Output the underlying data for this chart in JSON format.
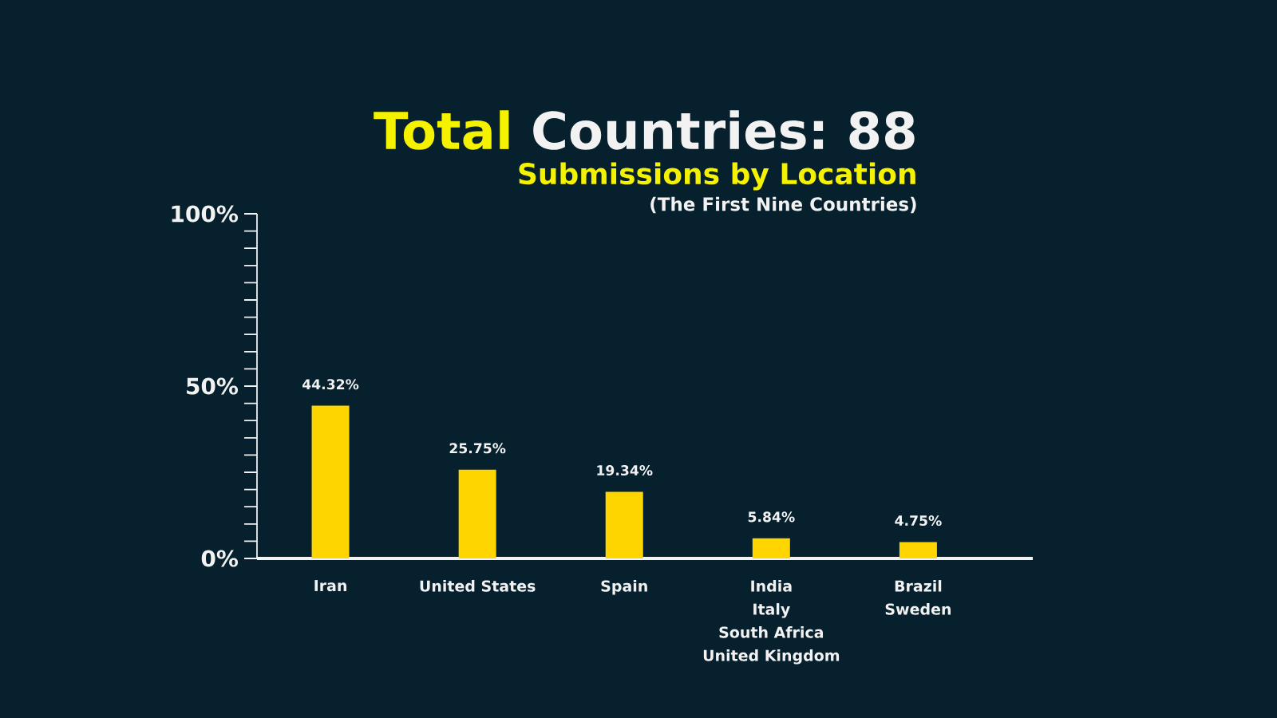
{
  "chart_data": {
    "type": "bar",
    "title": "Total Countries: 88",
    "subtitle": "Submissions by Location",
    "annotations": [
      "(The First Nine Countries)"
    ],
    "categories": [
      "Iran",
      "United States",
      "Spain",
      "India\nItaly\nSouth Africa\nUnited Kingdom",
      "Brazil\nSweden"
    ],
    "values": [
      44.32,
      25.75,
      19.34,
      5.84,
      4.75
    ],
    "value_labels": [
      "44.32%",
      "25.75%",
      "19.34%",
      "5.84%",
      "4.75%"
    ],
    "color": "#ffd500",
    "ylim": [
      0,
      100
    ],
    "yticks": [
      {
        "value": 0,
        "label": "0%"
      },
      {
        "value": 5,
        "label": null
      },
      {
        "value": 10,
        "label": null
      },
      {
        "value": 15,
        "label": null
      },
      {
        "value": 20,
        "label": null
      },
      {
        "value": 25,
        "label": null
      },
      {
        "value": 30,
        "label": null
      },
      {
        "value": 35,
        "label": null
      },
      {
        "value": 40,
        "label": null
      },
      {
        "value": 45,
        "label": null
      },
      {
        "value": 50,
        "label": "50%"
      },
      {
        "value": 55,
        "label": null
      },
      {
        "value": 60,
        "label": null
      },
      {
        "value": 65,
        "label": null
      },
      {
        "value": 70,
        "label": null
      },
      {
        "value": 75,
        "label": null
      },
      {
        "value": 80,
        "label": null
      },
      {
        "value": 85,
        "label": null
      },
      {
        "value": 90,
        "label": null
      },
      {
        "value": 95,
        "label": null
      },
      {
        "value": 100,
        "label": "100%"
      }
    ]
  }
}
